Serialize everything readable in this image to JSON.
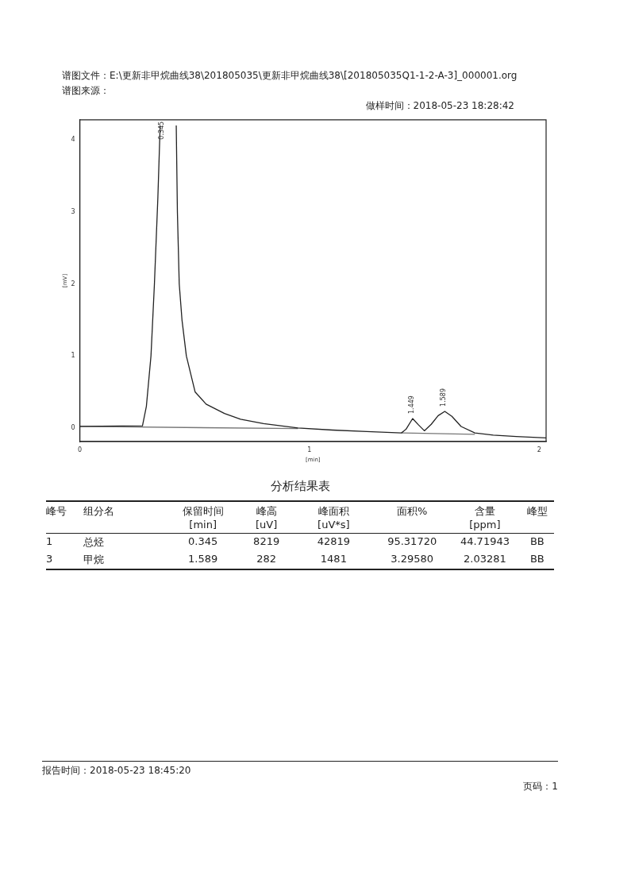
{
  "chart_data": [
    {
      "type": "line",
      "xlabel": "[min]",
      "ylabel": "[mV]",
      "xlim": [
        0,
        2.03
      ],
      "xticks": [
        0,
        1,
        2
      ],
      "ylim": [
        -0.19,
        4.28
      ],
      "yticks": [
        0,
        1,
        2,
        3,
        4
      ],
      "grid": false,
      "legend": false,
      "marker": "none",
      "line_style": "solid",
      "series": [
        {
          "color": "#222222",
          "x": [
            0,
            0.273,
            0.29,
            0.31,
            0.325,
            0.34,
            0.35,
            0.39,
            0.42,
            0.425,
            0.433,
            0.445,
            0.464,
            0.502,
            0.55,
            0.63,
            0.7,
            0.8,
            0.95,
            1.1,
            1.25,
            1.4,
            1.42,
            1.449,
            1.475,
            1.5,
            1.53,
            1.56,
            1.589,
            1.62,
            1.66,
            1.72,
            1.8,
            1.9,
            2.03
          ],
          "values": [
            0.02,
            0.03,
            0.3,
            1.0,
            2.0,
            3.2,
            4.2,
            null,
            4.2,
            3.0,
            2.0,
            1.5,
            1.0,
            0.5,
            0.33,
            0.2,
            0.12,
            0.06,
            0.0,
            -0.03,
            -0.05,
            -0.07,
            -0.02,
            0.13,
            0.04,
            -0.04,
            0.05,
            0.17,
            0.23,
            0.16,
            0.02,
            -0.07,
            -0.1,
            -0.12,
            -0.14
          ]
        },
        {
          "color": "#777777",
          "x": [
            0,
            0.95,
            1.2,
            1.4,
            1.72
          ],
          "values": [
            0.02,
            -0.01,
            null,
            -0.07,
            -0.09
          ]
        }
      ],
      "annotations": [
        "谱图文件：E:\\更新非甲烷曲线38\\201805035\\更新非甲烷曲线38\\[201805035Q1-1-2-A-3]_000001.org",
        "谱图来源：",
        "做样时间：2018-05-23 18:28:42",
        {
          "text": "0.345",
          "x": 0.345
        },
        {
          "text": "1.449",
          "x": 1.449,
          "y": 0.13
        },
        {
          "text": "1.589",
          "x": 1.589,
          "y": 0.23
        },
        "报告时间：2018-05-23 18:45:20",
        "页码：1"
      ]
    },
    {
      "type": "other",
      "title": "分析结果表",
      "categories": [
        "峰号",
        "组分名",
        "保留时间\n[min]",
        "峰高\n[uV]",
        "峰面积\n[uV*s]",
        "面积%",
        "含量\n[ppm]",
        "峰型"
      ],
      "cell_labels": [
        [
          "1",
          "总烃",
          "0.345",
          "8219",
          "42819",
          "95.31720",
          "44.71943",
          "BB"
        ],
        [
          "3",
          "甲烷",
          "1.589",
          "282",
          "1481",
          "3.29580",
          "2.03281",
          "BB"
        ]
      ]
    }
  ]
}
